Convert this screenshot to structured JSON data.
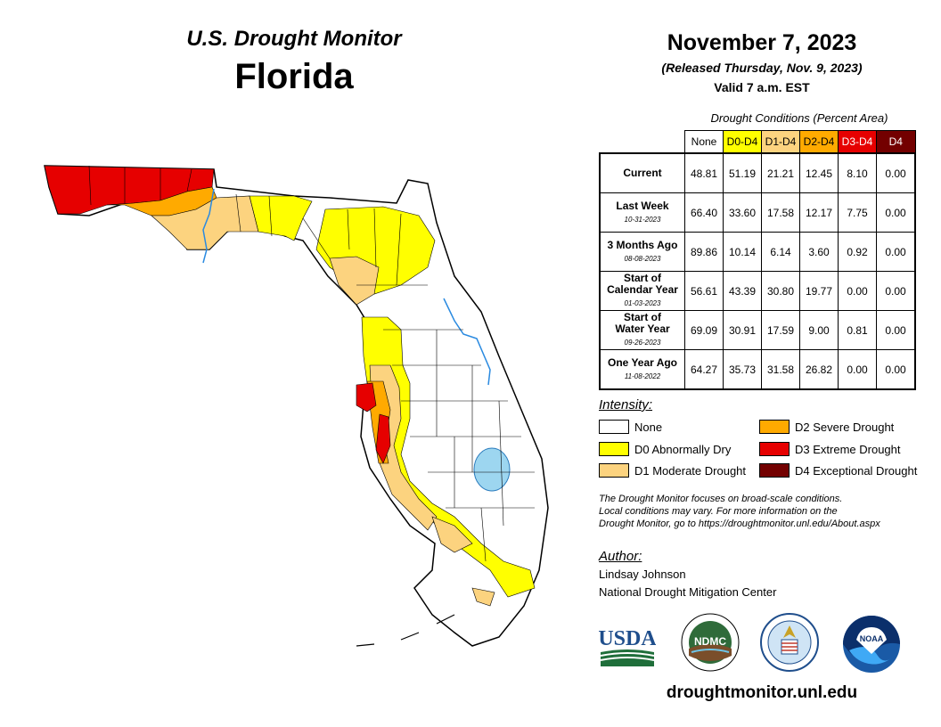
{
  "header": {
    "subtitle": "U.S. Drought Monitor",
    "title": "Florida",
    "date": "November 7, 2023",
    "released": "(Released Thursday, Nov. 9, 2023)",
    "valid": "Valid 7 a.m. EST"
  },
  "table": {
    "caption": "Drought Conditions (Percent Area)",
    "columns": [
      "None",
      "D0-D4",
      "D1-D4",
      "D2-D4",
      "D3-D4",
      "D4"
    ],
    "column_colors": [
      "#ffffff",
      "#ffff00",
      "#fcd37f",
      "#ffaa00",
      "#e60000",
      "#730000"
    ],
    "rows": [
      {
        "label": "Current",
        "label2": "",
        "date": "",
        "values": [
          "48.81",
          "51.19",
          "21.21",
          "12.45",
          "8.10",
          "0.00"
        ]
      },
      {
        "label": "Last Week",
        "label2": "",
        "date": "10-31-2023",
        "values": [
          "66.40",
          "33.60",
          "17.58",
          "12.17",
          "7.75",
          "0.00"
        ]
      },
      {
        "label": "3 Months Ago",
        "label2": "",
        "date": "08-08-2023",
        "values": [
          "89.86",
          "10.14",
          "6.14",
          "3.60",
          "0.92",
          "0.00"
        ]
      },
      {
        "label": "Start of",
        "label2": "Calendar Year",
        "date": "01-03-2023",
        "values": [
          "56.61",
          "43.39",
          "30.80",
          "19.77",
          "0.00",
          "0.00"
        ]
      },
      {
        "label": "Start of",
        "label2": "Water Year",
        "date": "09-26-2023",
        "values": [
          "69.09",
          "30.91",
          "17.59",
          "9.00",
          "0.81",
          "0.00"
        ]
      },
      {
        "label": "One Year Ago",
        "label2": "",
        "date": "11-08-2022",
        "values": [
          "64.27",
          "35.73",
          "31.58",
          "26.82",
          "0.00",
          "0.00"
        ]
      }
    ]
  },
  "legend": {
    "heading": "Intensity:",
    "items": [
      {
        "label": "None",
        "color": "#ffffff"
      },
      {
        "label": "D0 Abnormally Dry",
        "color": "#ffff00"
      },
      {
        "label": "D1 Moderate Drought",
        "color": "#fcd37f"
      },
      {
        "label": "D2 Severe Drought",
        "color": "#ffaa00"
      },
      {
        "label": "D3 Extreme Drought",
        "color": "#e60000"
      },
      {
        "label": "D4 Exceptional Drought",
        "color": "#730000"
      }
    ]
  },
  "note": {
    "line1": "The Drought Monitor focuses on broad-scale conditions.",
    "line2": "Local conditions may vary. For more information on the",
    "line3": "Drought Monitor, go to https://droughtmonitor.unl.edu/About.aspx"
  },
  "author": {
    "heading": "Author:",
    "name": "Lindsay Johnson",
    "org": "National Drought Mitigation Center"
  },
  "logos": {
    "usda": "USDA",
    "ndmc": "NDMC",
    "noaa": "NOAA"
  },
  "footer": {
    "url": "droughtmonitor.unl.edu"
  }
}
